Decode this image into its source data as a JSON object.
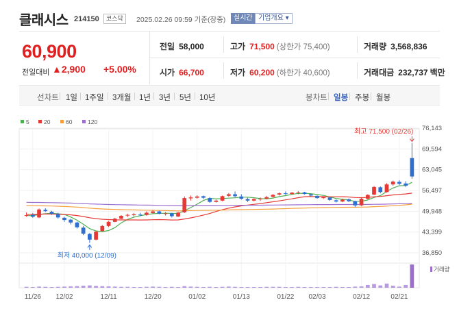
{
  "header": {
    "name": "클래시스",
    "code": "214150",
    "market": "코스닥",
    "datetime": "2025.02.26 09:59 기준(장중)",
    "realtime_label": "실시간",
    "info_label": "기업개요 ▾"
  },
  "quote": {
    "price": "60,900",
    "change_label": "전일대비",
    "change_value": "▲2,900",
    "change_pct": "+5.00%"
  },
  "stats": {
    "prev_label": "전일",
    "prev": "58,000",
    "high_label": "고가",
    "high": "71,500",
    "high_sub": "(상한가 75,400)",
    "volume_label": "거래량",
    "volume": "3,568,836",
    "open_label": "시가",
    "open": "66,700",
    "low_label": "저가",
    "low": "60,200",
    "low_sub": "(하한가 40,600)",
    "amount_label": "거래대금",
    "amount": "232,737",
    "amount_unit": "백만"
  },
  "periods": {
    "label": "선차트",
    "items": [
      "1일",
      "1주일",
      "3개월",
      "1년",
      "3년",
      "5년",
      "10년"
    ],
    "candle_label": "봉차트",
    "candle_items": [
      "일봉",
      "주봉",
      "월봉"
    ],
    "active_candle": "일봉"
  },
  "chart_data": {
    "type": "candlestick",
    "legend": [
      {
        "name": "5",
        "color": "#4caf50"
      },
      {
        "name": "20",
        "color": "#e53935"
      },
      {
        "name": "60",
        "color": "#f59e3b"
      },
      {
        "name": "120",
        "color": "#9c6fcf"
      }
    ],
    "y_ticks": [
      "76,143",
      "69,594",
      "63,045",
      "56,497",
      "49,948",
      "43,399",
      "36,850"
    ],
    "ylim": [
      36850,
      76143
    ],
    "x_ticks": [
      "11/26",
      "12/02",
      "12/11",
      "12/20",
      "01/02",
      "01/13",
      "01/22",
      "02/03",
      "02/12",
      "02/21"
    ],
    "annotation_high": "최고 71,500 (02/26)",
    "annotation_low": "최저 40,000 (12/09)",
    "volume_label": "거래량",
    "candles": [
      [
        48500,
        49600,
        48200,
        48700
      ],
      [
        48800,
        49400,
        47900,
        48200
      ],
      [
        48000,
        50800,
        47800,
        50500
      ],
      [
        50400,
        50900,
        49700,
        50000
      ],
      [
        49800,
        50100,
        48800,
        49100
      ],
      [
        49000,
        49500,
        47600,
        48000
      ],
      [
        47900,
        48200,
        46600,
        47200
      ],
      [
        47300,
        47600,
        45800,
        46400
      ],
      [
        46400,
        46700,
        44500,
        44900
      ],
      [
        44800,
        45300,
        42400,
        42900
      ],
      [
        42800,
        43100,
        40000,
        41000
      ],
      [
        41000,
        43800,
        40800,
        43500
      ],
      [
        43700,
        45600,
        43500,
        45300
      ],
      [
        45300,
        46900,
        45000,
        46600
      ],
      [
        46600,
        47900,
        46500,
        47600
      ],
      [
        47600,
        48700,
        47400,
        48500
      ],
      [
        48600,
        49200,
        48100,
        48800
      ],
      [
        48700,
        49400,
        48300,
        49000
      ],
      [
        48900,
        49500,
        48400,
        48700
      ],
      [
        48800,
        49900,
        48500,
        49500
      ],
      [
        49400,
        50300,
        49200,
        49900
      ],
      [
        49900,
        50100,
        49000,
        49200
      ],
      [
        49100,
        49700,
        48600,
        49300
      ],
      [
        49300,
        49500,
        48000,
        48400
      ],
      [
        48300,
        49800,
        48100,
        49500
      ],
      [
        49600,
        54600,
        49400,
        54100
      ],
      [
        54000,
        54900,
        53300,
        54300
      ],
      [
        54200,
        55000,
        53900,
        54600
      ],
      [
        54700,
        54900,
        53800,
        54200
      ],
      [
        54100,
        54400,
        52600,
        52900
      ],
      [
        52900,
        53600,
        52700,
        53300
      ],
      [
        53300,
        54900,
        53100,
        54700
      ],
      [
        54800,
        55700,
        54500,
        55300
      ],
      [
        55300,
        56200,
        54300,
        54700
      ],
      [
        54600,
        55300,
        53600,
        53900
      ],
      [
        53800,
        54200,
        52900,
        53300
      ],
      [
        53300,
        54000,
        53100,
        53800
      ],
      [
        53800,
        54300,
        53200,
        53900
      ],
      [
        53900,
        54800,
        53700,
        54400
      ],
      [
        54500,
        55400,
        54300,
        55100
      ],
      [
        55200,
        55900,
        54900,
        55600
      ],
      [
        55600,
        56200,
        55100,
        55400
      ],
      [
        55400,
        56000,
        55200,
        55800
      ],
      [
        55800,
        56300,
        55300,
        55900
      ],
      [
        55900,
        56100,
        55200,
        55400
      ],
      [
        55300,
        55500,
        54500,
        54900
      ],
      [
        54800,
        54900,
        53900,
        54100
      ],
      [
        54100,
        54600,
        53800,
        54400
      ],
      [
        54300,
        54400,
        53200,
        53500
      ],
      [
        53400,
        53700,
        52700,
        53000
      ],
      [
        53000,
        53900,
        52800,
        53600
      ],
      [
        53700,
        54000,
        52800,
        53100
      ],
      [
        53100,
        53300,
        51300,
        51800
      ],
      [
        51800,
        54200,
        51600,
        53900
      ],
      [
        53900,
        55300,
        53700,
        55100
      ],
      [
        55200,
        57900,
        55000,
        57600
      ],
      [
        57500,
        57800,
        55600,
        56000
      ],
      [
        56000,
        58800,
        55800,
        58400
      ],
      [
        58400,
        59600,
        58000,
        59300
      ],
      [
        59200,
        59700,
        58200,
        58600
      ],
      [
        58700,
        59400,
        57600,
        58000
      ],
      [
        66700,
        71500,
        60200,
        60900
      ]
    ],
    "volumes": [
      0.04,
      0.03,
      0.05,
      0.04,
      0.03,
      0.04,
      0.05,
      0.06,
      0.07,
      0.09,
      0.1,
      0.08,
      0.07,
      0.06,
      0.05,
      0.04,
      0.04,
      0.03,
      0.03,
      0.04,
      0.05,
      0.04,
      0.03,
      0.04,
      0.03,
      0.07,
      0.05,
      0.04,
      0.03,
      0.04,
      0.03,
      0.04,
      0.05,
      0.04,
      0.03,
      0.03,
      0.03,
      0.03,
      0.04,
      0.04,
      0.04,
      0.03,
      0.03,
      0.04,
      0.03,
      0.03,
      0.03,
      0.03,
      0.03,
      0.04,
      0.03,
      0.03,
      0.05,
      0.06,
      0.12,
      0.16,
      0.1,
      0.18,
      0.09,
      0.05,
      0.12,
      1.0
    ]
  }
}
